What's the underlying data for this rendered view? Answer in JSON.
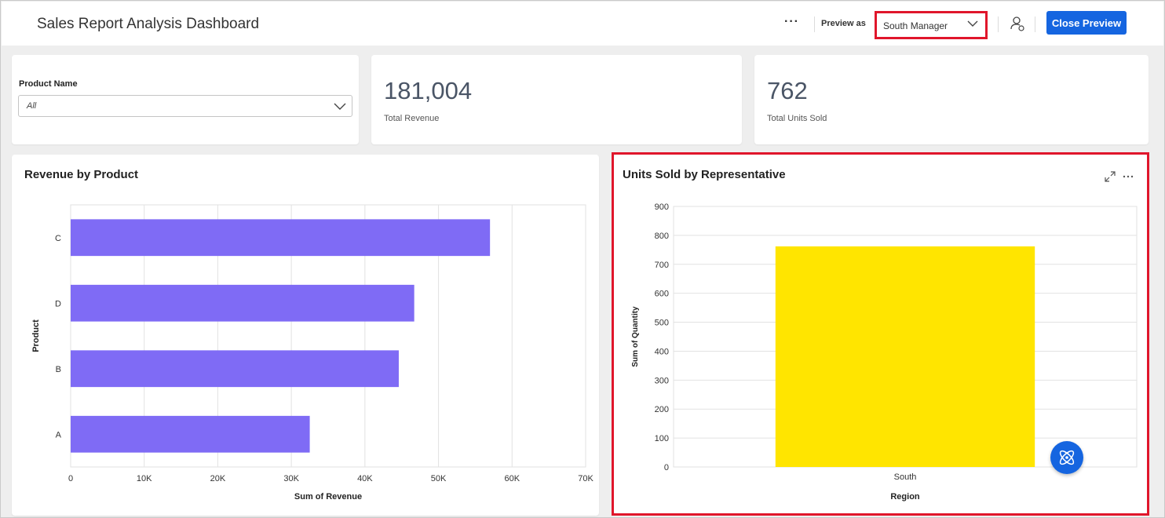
{
  "header": {
    "title": "Sales Report Analysis Dashboard",
    "more_label": "···",
    "preview_as_label": "Preview as",
    "preview_role": "South Manager",
    "close_preview_label": "Close Preview"
  },
  "filter": {
    "label": "Product Name",
    "value": "All"
  },
  "kpis": [
    {
      "value": "181,004",
      "label": "Total Revenue"
    },
    {
      "value": "762",
      "label": "Total Units Sold"
    }
  ],
  "colors": {
    "accent": "#1565e0",
    "highlight": "#e0162b",
    "bar_revenue": "#7f6bf5",
    "bar_units": "#ffe500"
  },
  "icons": {
    "expand": "expand-icon",
    "more": "more-icon",
    "user": "user-icon",
    "chevron": "chevron-down-icon",
    "ai": "ai-assistant-icon"
  },
  "chart_data": [
    {
      "type": "bar",
      "orientation": "horizontal",
      "title": "Revenue by Product",
      "categories": [
        "C",
        "D",
        "B",
        "A"
      ],
      "values": [
        57000,
        46700,
        44600,
        32500
      ],
      "xlabel": "Sum of Revenue",
      "ylabel": "Product",
      "xlim": [
        0,
        70000
      ],
      "xticks": [
        "0",
        "10K",
        "20K",
        "30K",
        "40K",
        "50K",
        "60K",
        "70K"
      ],
      "grid": true
    },
    {
      "type": "bar",
      "title": "Units Sold by Representative",
      "categories": [
        "South"
      ],
      "values": [
        762
      ],
      "xlabel": "Region",
      "ylabel": "Sum of Quantity",
      "ylim": [
        0,
        900
      ],
      "yticks": [
        "0",
        "100",
        "200",
        "300",
        "400",
        "500",
        "600",
        "700",
        "800",
        "900"
      ],
      "grid": true
    }
  ]
}
